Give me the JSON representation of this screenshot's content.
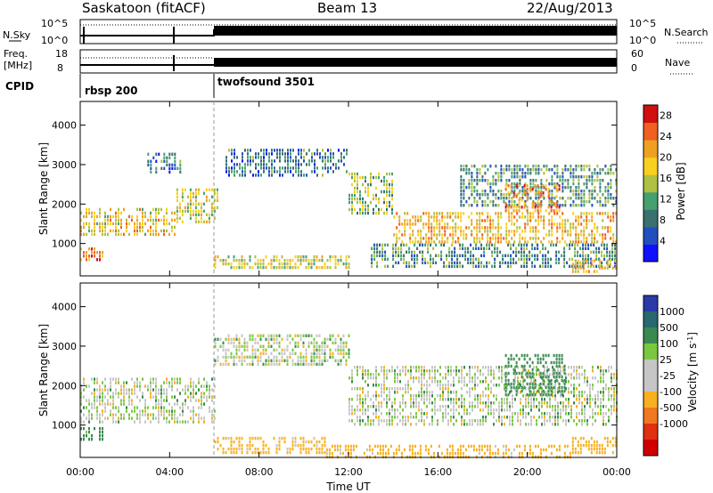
{
  "header": {
    "station": "Saskatoon (fitACF)",
    "beam": "Beam 13",
    "date": "22/Aug/2013"
  },
  "top_panels": {
    "nsky_label": "N.Sky",
    "nsky_ticks": [
      "10^5",
      "10^0"
    ],
    "nsearch_label": "N.Search",
    "freq_label": "Freq.",
    "freq_unit": "[MHz]",
    "freq_ticks": [
      "18",
      "8"
    ],
    "nave_ticks": [
      "60",
      "0"
    ],
    "nave_label": "Nave",
    "cpid_label": "CPID",
    "cpid_segments": [
      {
        "name": "rbsp",
        "id": "200",
        "start_hour": 0
      },
      {
        "name": "twofsound",
        "id": "3501",
        "start_hour": 6
      }
    ]
  },
  "colors": {
    "power_scale": [
      "#1010ff",
      "#224fc0",
      "#3a7070",
      "#46a070",
      "#b0c040",
      "#f8d020",
      "#f0a020",
      "#f06020",
      "#d01010"
    ],
    "velocity_scale": [
      "#2a3aa8",
      "#2a6870",
      "#3a8a50",
      "#7ac840",
      "#c6c6c6",
      "#c6c6c6",
      "#f8b020",
      "#f07820",
      "#e03010",
      "#d00000"
    ]
  },
  "chart_data": [
    {
      "type": "heatmap",
      "panel": "power",
      "title": "",
      "xlabel": "Time UT",
      "ylabel": "Slant Range [km]",
      "xlim_hours": [
        0,
        24
      ],
      "ylim": [
        180,
        4600
      ],
      "x_ticks": [
        "00:00",
        "04:00",
        "08:00",
        "12:00",
        "16:00",
        "20:00",
        "00:00"
      ],
      "y_ticks": [
        1000,
        2000,
        3000,
        4000
      ],
      "colorbar_label": "Power [dB]",
      "colorbar_ticks": [
        "4",
        "8",
        "12",
        "16",
        "20",
        "24",
        "28"
      ],
      "colorbar_range": [
        0,
        30
      ],
      "regions": [
        {
          "hours": [
            0,
            4.3
          ],
          "range_km": [
            1200,
            1900
          ],
          "power_db": 18
        },
        {
          "hours": [
            4.3,
            6.1
          ],
          "range_km": [
            1500,
            2400
          ],
          "power_db": 16
        },
        {
          "hours": [
            0,
            1.2
          ],
          "range_km": [
            600,
            900
          ],
          "power_db": 22
        },
        {
          "hours": [
            3,
            4.5
          ],
          "range_km": [
            2800,
            3300
          ],
          "power_db": 8
        },
        {
          "hours": [
            6.5,
            12
          ],
          "range_km": [
            2700,
            3400
          ],
          "power_db": 8
        },
        {
          "hours": [
            6,
            12
          ],
          "range_km": [
            350,
            700
          ],
          "power_db": 16
        },
        {
          "hours": [
            12,
            14
          ],
          "range_km": [
            1800,
            2800
          ],
          "power_db": 14
        },
        {
          "hours": [
            14,
            24
          ],
          "range_km": [
            1000,
            1800
          ],
          "power_db": 20
        },
        {
          "hours": [
            13,
            24
          ],
          "range_km": [
            400,
            1000
          ],
          "power_db": 10
        },
        {
          "hours": [
            17,
            24
          ],
          "range_km": [
            2000,
            3000
          ],
          "power_db": 10
        },
        {
          "hours": [
            19,
            21.5
          ],
          "range_km": [
            1800,
            2500
          ],
          "power_db": 22
        },
        {
          "hours": [
            22,
            24
          ],
          "range_km": [
            250,
            600
          ],
          "power_db": 20
        }
      ]
    },
    {
      "type": "heatmap",
      "panel": "velocity",
      "title": "",
      "xlabel": "Time UT",
      "ylabel": "Slant Range [km]",
      "xlim_hours": [
        0,
        24
      ],
      "ylim": [
        180,
        4600
      ],
      "x_ticks": [
        "00:00",
        "04:00",
        "08:00",
        "12:00",
        "16:00",
        "20:00",
        "00:00"
      ],
      "y_ticks": [
        1000,
        2000,
        3000,
        4000
      ],
      "colorbar_label": "Velocity [m s^-1]",
      "colorbar_ticks": [
        "1000",
        "500",
        "100",
        "25",
        "-25",
        "-100",
        "-500",
        "-1000"
      ],
      "regions": [
        {
          "hours": [
            0,
            6
          ],
          "range_km": [
            1100,
            2200
          ],
          "velocity": 0
        },
        {
          "hours": [
            0,
            1
          ],
          "range_km": [
            600,
            950
          ],
          "velocity": 200
        },
        {
          "hours": [
            6,
            12
          ],
          "range_km": [
            2500,
            3300
          ],
          "velocity": 0
        },
        {
          "hours": [
            12,
            24
          ],
          "range_km": [
            1000,
            2500
          ],
          "velocity": 0
        },
        {
          "hours": [
            6,
            11
          ],
          "range_km": [
            300,
            700
          ],
          "velocity": -200
        },
        {
          "hours": [
            11,
            22
          ],
          "range_km": [
            200,
            500
          ],
          "velocity": -200
        },
        {
          "hours": [
            19,
            21.7
          ],
          "range_km": [
            1800,
            2800
          ],
          "velocity": 300
        },
        {
          "hours": [
            22,
            24
          ],
          "range_km": [
            300,
            700
          ],
          "velocity": -300
        }
      ]
    }
  ]
}
